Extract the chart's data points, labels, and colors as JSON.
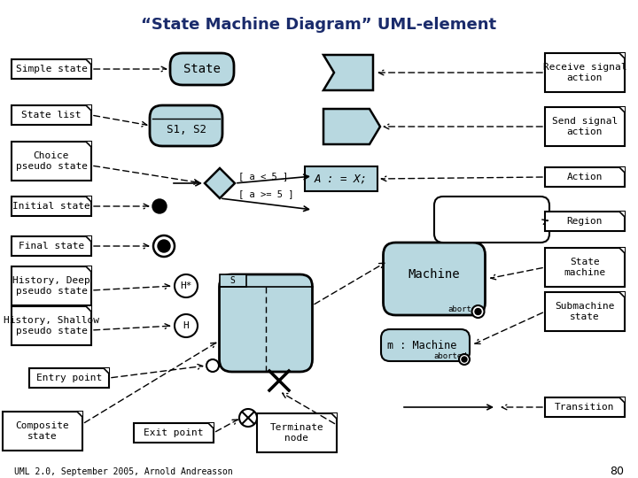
{
  "title": "“State Machine Diagram” UML-element",
  "title_color": "#1a2b6b",
  "bg_color": "#ffffff",
  "shape_fill": "#b8d8e0",
  "shape_stroke": "#000000",
  "label_box_fill": "#ffffff",
  "footer": "UML 2.0, September 2005, Arnold Andreasson",
  "footer_page": "80"
}
